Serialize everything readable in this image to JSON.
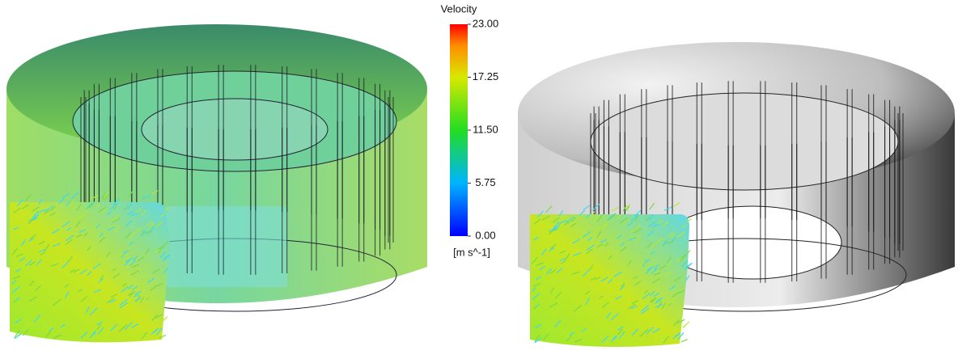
{
  "colorbar": {
    "title": "Velocity",
    "range": [
      0,
      23
    ],
    "ticks": [
      {
        "value": 23,
        "label": "23.00"
      },
      {
        "value": 17.25,
        "label": "17.25"
      },
      {
        "value": 11.5,
        "label": "11.50"
      },
      {
        "value": 5.75,
        "label": "5.75"
      },
      {
        "value": 0,
        "label": "0.00"
      }
    ],
    "unit": "[m s^-1]"
  }
}
